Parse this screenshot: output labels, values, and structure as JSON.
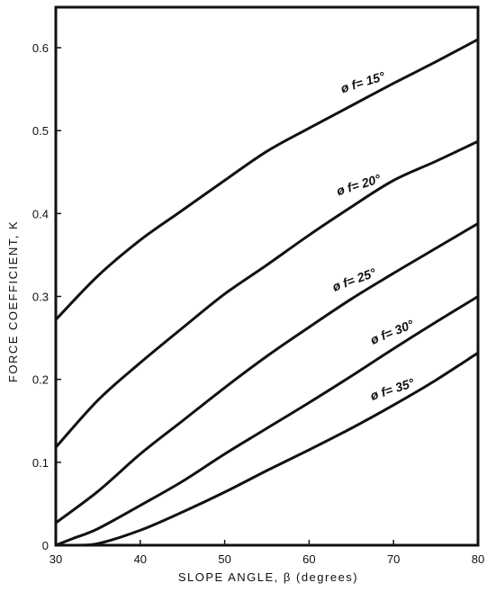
{
  "chart_data": {
    "type": "line",
    "xlabel": "SLOPE ANGLE, β (degrees)",
    "ylabel": "FORCE COEFFICIENT, K",
    "xlim": [
      30,
      80
    ],
    "ylim": [
      0,
      0.65
    ],
    "xticks": [
      "30",
      "40",
      "50",
      "60",
      "70",
      "80"
    ],
    "yticks": [
      "0",
      "0.1",
      "0.2",
      "0.3",
      "0.4",
      "0.5",
      "0.6"
    ],
    "grid": false,
    "series": [
      {
        "name": "ø f= 15°",
        "x": [
          30,
          35,
          40,
          45,
          50,
          55,
          60,
          65,
          70,
          75,
          80
        ],
        "y": [
          0.272,
          0.325,
          0.368,
          0.404,
          0.44,
          0.475,
          0.503,
          0.53,
          0.557,
          0.583,
          0.61
        ]
      },
      {
        "name": "ø f= 20°",
        "x": [
          30,
          35,
          40,
          45,
          50,
          55,
          60,
          65,
          70,
          75,
          80
        ],
        "y": [
          0.118,
          0.175,
          0.22,
          0.262,
          0.303,
          0.338,
          0.374,
          0.408,
          0.44,
          0.463,
          0.487
        ]
      },
      {
        "name": "ø f= 25°",
        "x": [
          30,
          35,
          40,
          45,
          50,
          55,
          60,
          65,
          70,
          75,
          80
        ],
        "y": [
          0.027,
          0.065,
          0.11,
          0.15,
          0.19,
          0.228,
          0.263,
          0.297,
          0.328,
          0.358,
          0.388
        ]
      },
      {
        "name": "ø f= 30°",
        "x": [
          30,
          32,
          35,
          40,
          45,
          50,
          55,
          60,
          65,
          70,
          75,
          80
        ],
        "y": [
          0.0,
          0.008,
          0.02,
          0.048,
          0.077,
          0.11,
          0.141,
          0.172,
          0.204,
          0.237,
          0.269,
          0.3
        ]
      },
      {
        "name": "ø f= 35°",
        "x": [
          32,
          35,
          40,
          45,
          50,
          55,
          60,
          65,
          70,
          75,
          80
        ],
        "y": [
          0.0,
          0.002,
          0.018,
          0.04,
          0.064,
          0.09,
          0.115,
          0.141,
          0.169,
          0.199,
          0.232
        ]
      }
    ]
  }
}
